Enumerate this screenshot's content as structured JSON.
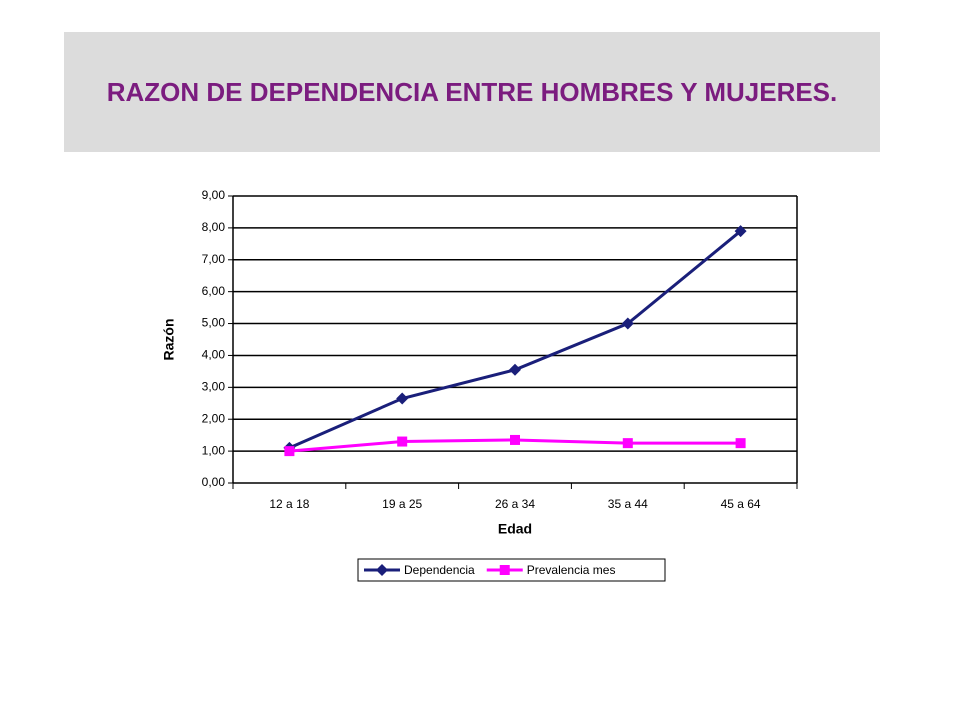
{
  "chart_data": {
    "type": "line",
    "title": "RAZON DE DEPENDENCIA ENTRE HOMBRES Y MUJERES.",
    "x_label": "Edad",
    "y_label": "Razón",
    "categories": [
      "12 a 18",
      "19 a 25",
      "26 a 34",
      "35 a 44",
      "45 a 64"
    ],
    "series": [
      {
        "name": "Dependencia",
        "color": "#1a1f7a",
        "marker": "diamond",
        "values": [
          1.1,
          2.65,
          3.55,
          5.0,
          7.9
        ]
      },
      {
        "name": "Prevalencia mes",
        "color": "#ff00ff",
        "marker": "square",
        "values": [
          1.0,
          1.3,
          1.35,
          1.25,
          1.25
        ]
      }
    ],
    "ylim": [
      0,
      9
    ],
    "yticks": [
      {
        "value": 0,
        "label": "0,00"
      },
      {
        "value": 1,
        "label": "1,00"
      },
      {
        "value": 2,
        "label": "2,00"
      },
      {
        "value": 3,
        "label": "3,00"
      },
      {
        "value": 4,
        "label": "4,00"
      },
      {
        "value": 5,
        "label": "5,00"
      },
      {
        "value": 6,
        "label": "6,00"
      },
      {
        "value": 7,
        "label": "7,00"
      },
      {
        "value": 8,
        "label": "8,00"
      },
      {
        "value": 9,
        "label": "9,00"
      }
    ],
    "grid": true,
    "legend": "bottom"
  }
}
